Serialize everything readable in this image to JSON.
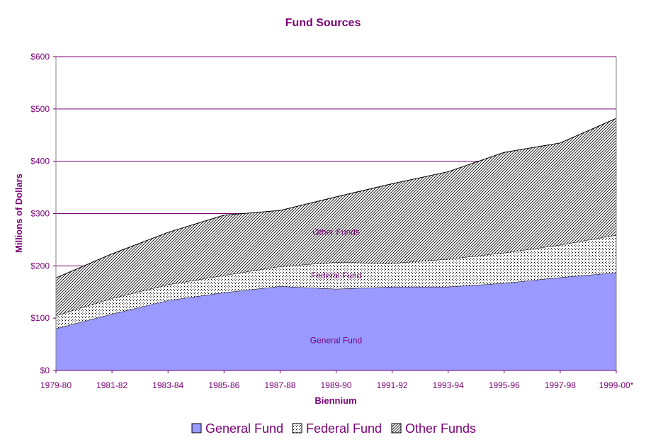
{
  "colors": {
    "text": "#7a0077",
    "gridline": "#7a0077",
    "general_fund_fill": "#9999ff",
    "federal_fund_fill": "#ffffff",
    "other_funds_fill": "#ffffff",
    "outline": "#000000"
  },
  "chart_data": {
    "type": "area",
    "stacked": true,
    "title": "Fund Sources",
    "xlabel": "Biennium",
    "ylabel": "Millions of Dollars",
    "ylim": [
      0,
      600
    ],
    "ytick_values": [
      0,
      100,
      200,
      300,
      400,
      500,
      600
    ],
    "ytick_labels": [
      "$0",
      "$100",
      "$200",
      "$300",
      "$400",
      "$500",
      "$600"
    ],
    "categories": [
      "1979-80",
      "1981-82",
      "1983-84",
      "1985-86",
      "1987-88",
      "1989-90",
      "1991-92",
      "1993-94",
      "1995-96",
      "1997-98",
      "1999-00*"
    ],
    "grid": "horizontal",
    "legend_position": "bottom",
    "series": [
      {
        "name": "General Fund",
        "pattern": "solid",
        "values": [
          80,
          108,
          134,
          149,
          161,
          156,
          160,
          160,
          167,
          178,
          187
        ],
        "area_label": "General Fund"
      },
      {
        "name": "Federal Fund",
        "pattern": "dotted",
        "values": [
          25,
          30,
          30,
          33,
          38,
          51,
          45,
          53,
          58,
          62,
          72
        ],
        "area_label": "Federal Fund"
      },
      {
        "name": "Other Funds",
        "pattern": "hatched",
        "values": [
          72,
          85,
          100,
          115,
          107,
          125,
          152,
          167,
          192,
          195,
          223
        ],
        "area_label": "Other Funds"
      }
    ]
  }
}
